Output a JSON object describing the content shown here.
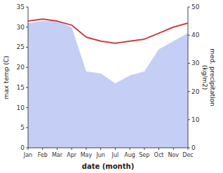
{
  "chart_data": {
    "type": "line",
    "xlabel": "date (month)",
    "ylabel": "max temp (C)",
    "y2label": "med. precipitation\n(kg/m2)",
    "categories": [
      "Jan",
      "Feb",
      "Mar",
      "Apr",
      "May",
      "Jun",
      "Jul",
      "Aug",
      "Sep",
      "Oct",
      "Nov",
      "Dec"
    ],
    "series": [
      {
        "type": "area",
        "color": "#c5cef5",
        "values": [
          31.0,
          31.5,
          31.5,
          30.0,
          19.0,
          18.5,
          16.0,
          18.0,
          19.0,
          24.5,
          26.5,
          28.5
        ]
      },
      {
        "type": "line",
        "color": "#cd4040",
        "values": [
          31.5,
          32.0,
          31.5,
          30.5,
          27.5,
          26.5,
          26.0,
          26.5,
          27.0,
          28.5,
          30.0,
          31.0
        ]
      }
    ],
    "ylim": [
      0,
      35
    ],
    "yticks": [
      0,
      5,
      10,
      15,
      20,
      25,
      30,
      35
    ],
    "y2lim": [
      0,
      50
    ],
    "y2ticks": [
      0,
      10,
      20,
      30,
      40,
      50
    ]
  }
}
